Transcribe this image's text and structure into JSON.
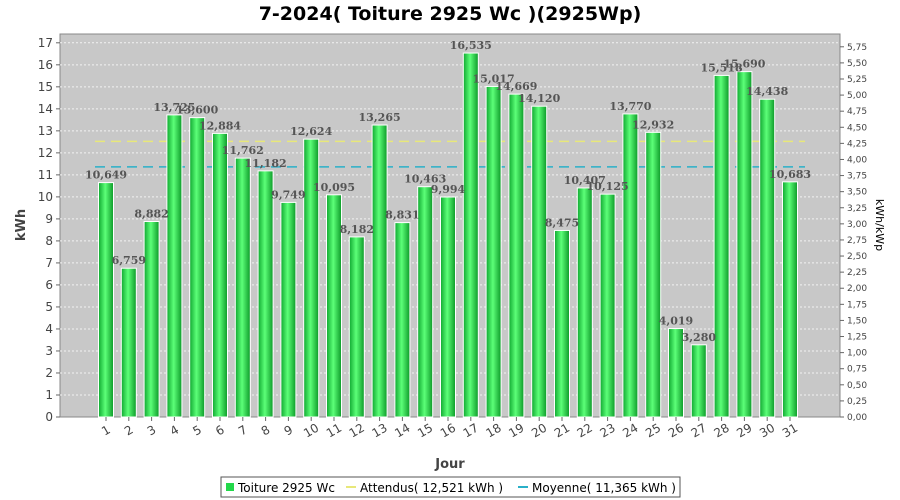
{
  "chart_data": {
    "type": "bar",
    "title": "7-2024( Toiture 2925 Wc )(2925Wp)",
    "xlabel": "Jour",
    "ylabel": "kWh",
    "ylabel_right": "kWh/kWp",
    "ylim": [
      0,
      17.4
    ],
    "yticks": [
      "0",
      "1",
      "2",
      "3",
      "4",
      "5",
      "6",
      "7",
      "8",
      "9",
      "10",
      "11",
      "12",
      "13",
      "14",
      "15",
      "16",
      "17"
    ],
    "y2ticks": [
      "0,00",
      "0,25",
      "0,50",
      "0,75",
      "1,00",
      "1,25",
      "1,50",
      "1,75",
      "2,00",
      "2,25",
      "2,50",
      "2,75",
      "3,00",
      "3,25",
      "3,50",
      "3,75",
      "4,00",
      "4,25",
      "4,50",
      "4,75",
      "5,00",
      "5,25",
      "5,50",
      "5,75"
    ],
    "categories": [
      "1",
      "2",
      "3",
      "4",
      "5",
      "6",
      "7",
      "8",
      "9",
      "10",
      "11",
      "12",
      "13",
      "14",
      "15",
      "16",
      "17",
      "18",
      "19",
      "20",
      "21",
      "22",
      "23",
      "24",
      "25",
      "26",
      "27",
      "28",
      "29",
      "30",
      "31"
    ],
    "values": [
      10.649,
      6.759,
      8.882,
      13.725,
      13.6,
      12.884,
      11.762,
      11.182,
      9.749,
      12.624,
      10.095,
      8.182,
      13.265,
      8.831,
      10.463,
      9.994,
      16.535,
      15.017,
      14.669,
      14.12,
      8.475,
      10.407,
      10.125,
      13.77,
      12.932,
      4.019,
      3.28,
      15.518,
      15.69,
      14.438,
      10.683
    ],
    "value_labels": [
      "10,649",
      "6,759",
      "8,882",
      "13,725",
      "13,600",
      "12,884",
      "11,762",
      "11,182",
      "9,749",
      "12,624",
      "10,095",
      "8,182",
      "13,265",
      "8,831",
      "10,463",
      "9,994",
      "16,535",
      "15,017",
      "14,669",
      "14,120",
      "8,475",
      "10,407",
      "10,125",
      "13,770",
      "12,932",
      "4,019",
      "3,280",
      "15,518",
      "15,690",
      "14,438",
      "10,683"
    ],
    "reference_lines": [
      {
        "name": "Attendus( 12,521 kWh )",
        "value": 12.521,
        "color": "#e8e87a",
        "style": "dashed"
      },
      {
        "name": "Moyenne( 11,365 kWh )",
        "value": 11.365,
        "color": "#2ab0c8",
        "style": "dashed"
      }
    ],
    "series": [
      {
        "name": "Toiture 2925 Wc",
        "color": "#22d84a"
      }
    ],
    "grid": true,
    "legend_position": "bottom-center"
  }
}
